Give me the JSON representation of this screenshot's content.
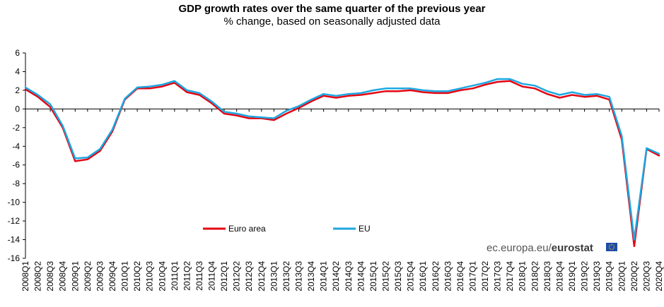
{
  "title": "GDP growth rates over the same quarter of the previous year",
  "subtitle": "% change, based on seasonally adjusted data",
  "credit": {
    "prefix": "ec.europa.eu/",
    "brand": "eurostat"
  },
  "colors": {
    "euro_area": "#e30613",
    "eu": "#1ea7e1",
    "axis": "#000000"
  },
  "chart_data": {
    "type": "line",
    "title": "GDP growth rates over the same quarter of the previous year",
    "subtitle": "% change, based on seasonally adjusted data",
    "ylim": [
      -16,
      6
    ],
    "yticks": [
      6,
      4,
      2,
      0,
      -2,
      -4,
      -6,
      -8,
      -10,
      -12,
      -14,
      -16
    ],
    "grid": false,
    "legend_position": "bottom-center",
    "categories": [
      "2008Q1",
      "2008Q2",
      "2008Q3",
      "2008Q4",
      "2009Q1",
      "2009Q2",
      "2009Q3",
      "2009Q4",
      "2010Q1",
      "2010Q2",
      "2010Q3",
      "2010Q4",
      "2011Q1",
      "2011Q2",
      "2011Q3",
      "2011Q4",
      "2012Q1",
      "2012Q2",
      "2012Q3",
      "2012Q4",
      "2013Q1",
      "2013Q2",
      "2013Q3",
      "2013Q4",
      "2014Q1",
      "2014Q2",
      "2014Q3",
      "2014Q4",
      "2015Q1",
      "2015Q2",
      "2015Q3",
      "2015Q4",
      "2016Q1",
      "2016Q2",
      "2016Q3",
      "2016Q4",
      "2017Q1",
      "2017Q2",
      "2017Q3",
      "2017Q4",
      "2018Q1",
      "2018Q2",
      "2018Q3",
      "2018Q4",
      "2019Q1",
      "2019Q2",
      "2019Q3",
      "2019Q4",
      "2020Q1",
      "2020Q2",
      "2020Q3",
      "2020Q4"
    ],
    "series": [
      {
        "name": "Euro area",
        "color": "#e30613",
        "values": [
          2.1,
          1.3,
          0.2,
          -2.0,
          -5.6,
          -5.4,
          -4.5,
          -2.4,
          1.0,
          2.2,
          2.2,
          2.4,
          2.8,
          1.8,
          1.5,
          0.6,
          -0.5,
          -0.7,
          -1.0,
          -1.0,
          -1.2,
          -0.5,
          0.1,
          0.8,
          1.4,
          1.2,
          1.4,
          1.5,
          1.7,
          1.9,
          1.9,
          2.0,
          1.8,
          1.7,
          1.7,
          2.0,
          2.2,
          2.6,
          2.9,
          3.0,
          2.4,
          2.2,
          1.6,
          1.2,
          1.5,
          1.3,
          1.4,
          1.0,
          -3.3,
          -14.7,
          -4.3,
          -5.0
        ]
      },
      {
        "name": "EU",
        "color": "#1ea7e1",
        "values": [
          2.3,
          1.5,
          0.5,
          -1.8,
          -5.3,
          -5.2,
          -4.3,
          -2.2,
          1.1,
          2.3,
          2.4,
          2.6,
          3.0,
          2.0,
          1.7,
          0.8,
          -0.3,
          -0.5,
          -0.8,
          -0.9,
          -1.0,
          -0.2,
          0.3,
          1.0,
          1.6,
          1.4,
          1.6,
          1.7,
          2.0,
          2.2,
          2.2,
          2.2,
          2.0,
          1.9,
          1.9,
          2.2,
          2.5,
          2.8,
          3.2,
          3.2,
          2.7,
          2.5,
          1.9,
          1.5,
          1.8,
          1.5,
          1.6,
          1.3,
          -2.9,
          -14.0,
          -4.2,
          -4.8
        ]
      }
    ]
  }
}
